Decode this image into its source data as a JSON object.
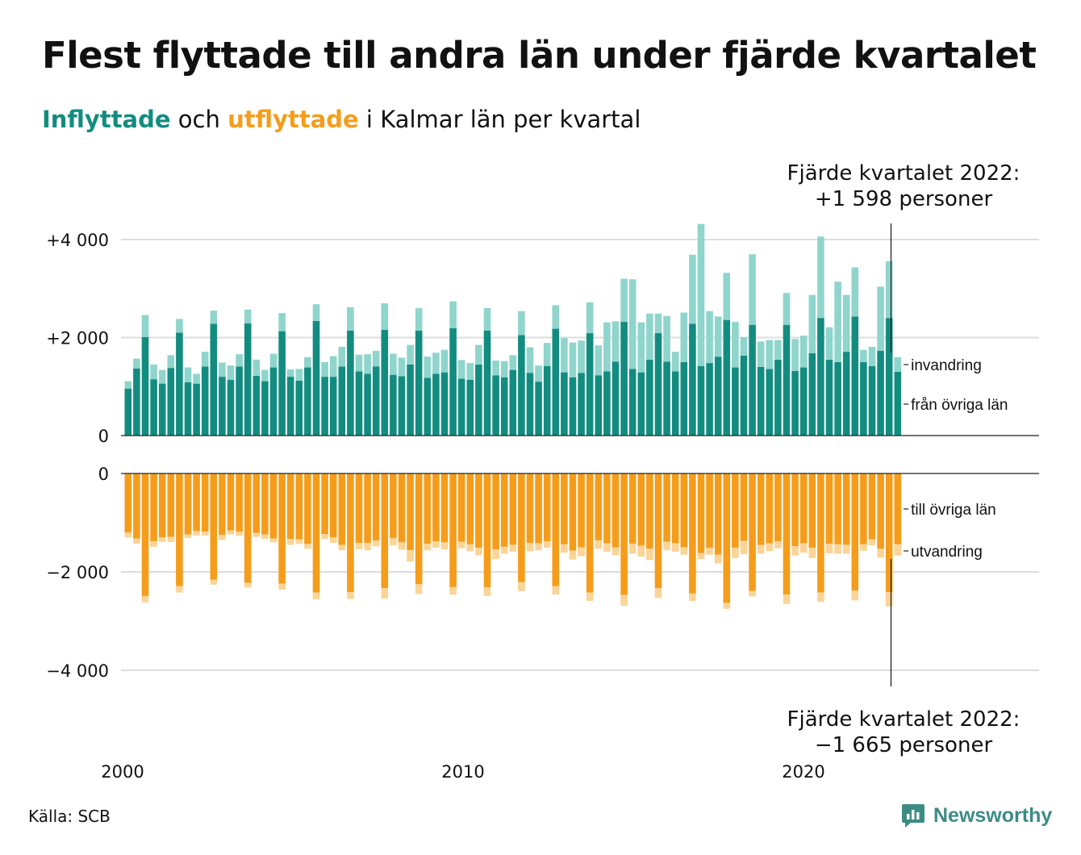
{
  "title": "Flest flyttade till andra län under fjärde kvartalet",
  "subtitle": {
    "part1": "Inflyttade",
    "part2": " och ",
    "part3": "utflyttade",
    "part4": " i Kalmar län per kvartal"
  },
  "source": "Källa: SCB",
  "logo_text": "Newsworthy",
  "colors": {
    "in_dark": "#138c80",
    "in_light": "#8fd5cc",
    "out_dark": "#f59d1b",
    "out_light": "#fbd497",
    "grid": "#dddddd",
    "axis": "#222222"
  },
  "chart_data": {
    "type": "bar",
    "title": "Flest flyttade till andra län under fjärde kvartalet",
    "x_start": "2000 Q1",
    "x_ticks": [
      "2000",
      "2010",
      "2020"
    ],
    "y_ticks_top": [
      {
        "value": 0,
        "label": "0"
      },
      {
        "value": 2000,
        "label": "+2 000"
      },
      {
        "value": 4000,
        "label": "+4 000"
      }
    ],
    "y_ticks_bottom": [
      {
        "value": 0,
        "label": "0"
      },
      {
        "value": -2000,
        "label": "−2 000"
      },
      {
        "value": -4000,
        "label": "−4 000"
      }
    ],
    "ylim_top": [
      0,
      4300
    ],
    "ylim_bottom": [
      -4300,
      0
    ],
    "labels": {
      "in_light": "invandring",
      "in_dark": "från övriga län",
      "out_dark": "till övriga län",
      "out_light": "utvandring"
    },
    "annotation_top": [
      "Fjärde kvartalet 2022:",
      "+1 598 personer"
    ],
    "annotation_bottom": [
      "Fjärde kvartalet 2022:",
      "−1 665 personer"
    ],
    "series": [
      {
        "name": "från övriga län",
        "values": [
          960,
          1370,
          2010,
          1150,
          1060,
          1380,
          2100,
          1090,
          1060,
          1410,
          2280,
          1200,
          1140,
          1410,
          2290,
          1220,
          1110,
          1390,
          2130,
          1200,
          1120,
          1390,
          2340,
          1200,
          1200,
          1410,
          2140,
          1310,
          1260,
          1410,
          2160,
          1240,
          1210,
          1450,
          2140,
          1180,
          1260,
          1290,
          2190,
          1160,
          1140,
          1450,
          2140,
          1230,
          1190,
          1340,
          2050,
          1280,
          1100,
          1420,
          2180,
          1290,
          1190,
          1280,
          2090,
          1230,
          1310,
          1510,
          2320,
          1360,
          1290,
          1550,
          2090,
          1510,
          1310,
          1500,
          2280,
          1420,
          1480,
          1610,
          2360,
          1390,
          1630,
          2260,
          1400,
          1360,
          1550,
          2260,
          1320,
          1390,
          1680,
          2400,
          1550,
          1500,
          1710,
          2430,
          1500,
          1420,
          1730,
          2400,
          1300
        ]
      },
      {
        "name": "invandring",
        "values": [
          150,
          200,
          450,
          300,
          280,
          260,
          280,
          300,
          200,
          300,
          270,
          290,
          290,
          250,
          280,
          330,
          230,
          280,
          370,
          150,
          240,
          210,
          340,
          300,
          420,
          400,
          480,
          340,
          400,
          320,
          540,
          430,
          380,
          400,
          460,
          430,
          430,
          460,
          550,
          380,
          340,
          400,
          460,
          300,
          330,
          300,
          490,
          520,
          330,
          470,
          480,
          700,
          710,
          660,
          630,
          610,
          1000,
          820,
          880,
          1830,
          1020,
          940,
          400,
          930,
          400,
          1010,
          1410,
          2900,
          1060,
          820,
          960,
          930,
          380,
          1440,
          520,
          590,
          400,
          650,
          650,
          650,
          1190,
          1660,
          660,
          1640,
          1160,
          1000,
          250,
          390,
          1310,
          1160,
          300
        ]
      },
      {
        "name": "till övriga län",
        "values": [
          -1200,
          -1320,
          -2490,
          -1380,
          -1300,
          -1290,
          -2290,
          -1240,
          -1170,
          -1180,
          -2160,
          -1250,
          -1160,
          -1180,
          -2220,
          -1210,
          -1240,
          -1320,
          -2240,
          -1330,
          -1340,
          -1430,
          -2420,
          -1230,
          -1300,
          -1450,
          -2410,
          -1410,
          -1410,
          -1360,
          -2330,
          -1310,
          -1400,
          -1560,
          -2250,
          -1430,
          -1380,
          -1400,
          -2310,
          -1390,
          -1440,
          -1510,
          -2310,
          -1540,
          -1490,
          -1450,
          -2210,
          -1410,
          -1420,
          -1380,
          -2290,
          -1440,
          -1570,
          -1500,
          -2420,
          -1360,
          -1420,
          -1500,
          -2470,
          -1430,
          -1470,
          -1530,
          -2330,
          -1390,
          -1420,
          -1500,
          -2440,
          -1620,
          -1510,
          -1650,
          -2630,
          -1510,
          -1370,
          -2390,
          -1450,
          -1420,
          -1380,
          -2460,
          -1480,
          -1420,
          -1510,
          -2420,
          -1430,
          -1440,
          -1450,
          -2380,
          -1440,
          -1340,
          -1530,
          -2410,
          -1440
        ]
      },
      {
        "name": "utvandring",
        "values": [
          -100,
          -110,
          -130,
          -110,
          -90,
          -100,
          -130,
          -70,
          -90,
          -80,
          -100,
          -100,
          -80,
          -90,
          -100,
          -80,
          -90,
          -80,
          -120,
          -120,
          -90,
          -100,
          -140,
          -100,
          -110,
          -110,
          -140,
          -130,
          -150,
          -120,
          -210,
          -150,
          -150,
          -230,
          -200,
          -130,
          -130,
          -140,
          -150,
          -130,
          -140,
          -150,
          -180,
          -200,
          -140,
          -140,
          -180,
          -170,
          -140,
          -130,
          -170,
          -170,
          -180,
          -180,
          -170,
          -170,
          -170,
          -160,
          -220,
          -200,
          -220,
          -230,
          -200,
          -170,
          -170,
          -150,
          -150,
          -120,
          -140,
          -180,
          -120,
          -210,
          -270,
          -110,
          -180,
          -160,
          -140,
          -190,
          -190,
          -190,
          -210,
          -190,
          -190,
          -190,
          -180,
          -200,
          -130,
          -120,
          -180,
          -290,
          -230
        ]
      }
    ]
  }
}
